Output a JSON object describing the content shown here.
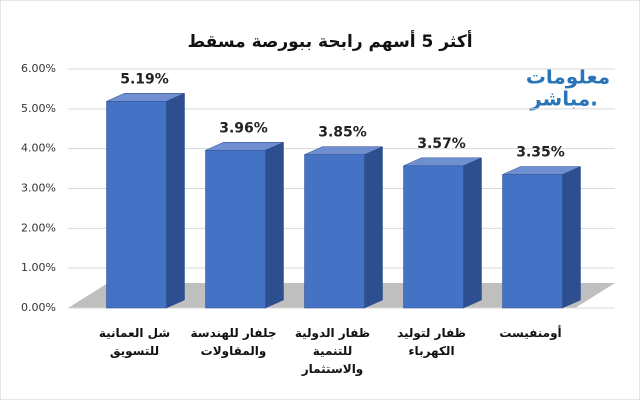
{
  "chart_data": {
    "type": "bar3d",
    "title": "أكثر 5 أسهم رابحة ببورصة مسقط",
    "logo": [
      "معلومات",
      "مباشر."
    ],
    "categories": [
      "شل العمانية\nللتسويق",
      "جلفار للهندسة\nوالمقاولات",
      "ظفار الدولية\nللتنمية\nوالاستثمار",
      "ظفار لتوليد\nالكهرباء",
      "أومنفيست"
    ],
    "values": [
      5.19,
      3.96,
      3.85,
      3.57,
      3.35
    ],
    "value_labels": [
      "5.19%",
      "3.96%",
      "3.85%",
      "3.57%",
      "3.35%"
    ],
    "color": "#4472c4",
    "ylim": [
      0,
      6
    ],
    "yticks": [
      {
        "value": 0,
        "label": "0.00%"
      },
      {
        "value": 1,
        "label": "1.00%"
      },
      {
        "value": 2,
        "label": "2.00%"
      },
      {
        "value": 3,
        "label": "3.00%"
      },
      {
        "value": 4,
        "label": "4.00%"
      },
      {
        "value": 5,
        "label": "5.00%"
      },
      {
        "value": 6,
        "label": "6.00%"
      }
    ],
    "grid": true
  }
}
